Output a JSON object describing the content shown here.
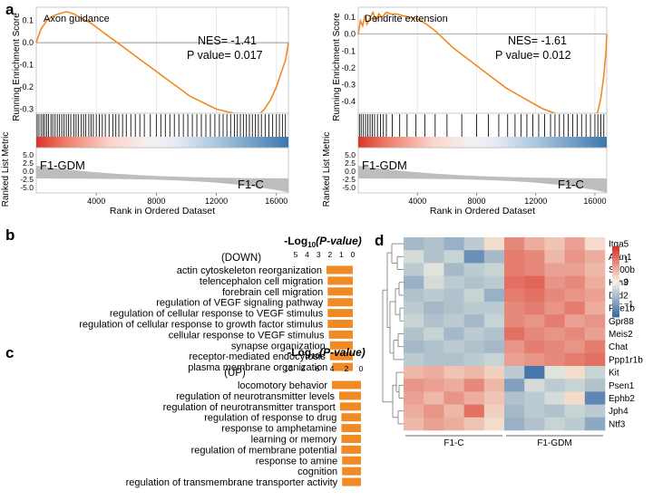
{
  "panel_letters": {
    "a": "a",
    "b": "b",
    "c": "c",
    "d": "d"
  },
  "colors": {
    "gsea_line": "#f08a24",
    "bar": "#f08a24",
    "heat_low": "#3b6ea8",
    "heat_mid": "#f7f4e3",
    "heat_high": "#d9352a"
  },
  "chart_data": [
    {
      "id": "gsea_axon",
      "type": "line",
      "title": "Axon guidance",
      "nes_label": "NES= -1.41",
      "pvalue_label": "P value= 0.017",
      "ylabel": "Running Enrichment Score",
      "ylabel2": "Ranked List Metric",
      "xlabel": "Rank in Ordered Dataset",
      "ylim": [
        -0.38,
        0.16
      ],
      "yticks": [
        0.1,
        0.0,
        -0.1,
        -0.2,
        -0.3
      ],
      "ytick_labels": [
        "0.1",
        "0.0",
        "-0.1",
        "-0.2",
        "-0.3"
      ],
      "xlim": [
        0,
        16800
      ],
      "xticks": [
        4000,
        8000,
        12000,
        16000
      ],
      "xtick_labels": [
        "4000",
        "8000",
        "12000",
        "16000"
      ],
      "metric_ticks": [
        "5.0",
        "2.5",
        "0.0",
        "-2.5",
        "-5.0"
      ],
      "left_group": "F1-GDM",
      "right_group": "F1-C",
      "curve": {
        "x": [
          0,
          300,
          700,
          1100,
          1500,
          2000,
          2500,
          3000,
          3600,
          4200,
          4800,
          5400,
          6000,
          6600,
          7200,
          7800,
          8400,
          9000,
          9600,
          10200,
          10800,
          11400,
          12000,
          12600,
          13200,
          13800,
          14400,
          14800,
          15200,
          15600,
          16000,
          16300,
          16600,
          16800
        ],
        "y": [
          0.0,
          0.06,
          0.1,
          0.12,
          0.13,
          0.14,
          0.13,
          0.11,
          0.09,
          0.06,
          0.03,
          0.0,
          -0.03,
          -0.06,
          -0.09,
          -0.12,
          -0.15,
          -0.18,
          -0.21,
          -0.24,
          -0.26,
          -0.28,
          -0.3,
          -0.31,
          -0.32,
          -0.32,
          -0.33,
          -0.33,
          -0.3,
          -0.26,
          -0.2,
          -0.14,
          -0.08,
          0.0
        ]
      },
      "hits": [
        60,
        180,
        320,
        450,
        560,
        700,
        820,
        980,
        1100,
        1250,
        1400,
        1550,
        1700,
        1850,
        2000,
        2150,
        2300,
        2500,
        2650,
        2800,
        3000,
        3150,
        3300,
        3500,
        3650,
        3800,
        4000,
        4200,
        4400,
        4600,
        4850,
        5100,
        5300,
        5500,
        5750,
        6000,
        6300,
        6600,
        6900,
        7200,
        7600,
        8000,
        8300,
        8600,
        8900,
        9200,
        9500,
        9800,
        10100,
        10400,
        10700,
        11000,
        11300,
        11600,
        11900,
        12200,
        12450,
        12700,
        12950,
        13200,
        13400,
        13600,
        13800,
        14000,
        14200,
        14400,
        14600,
        14800,
        15000,
        15250,
        15500,
        15750,
        16000,
        16200,
        16400,
        16600
      ]
    },
    {
      "id": "gsea_dendrite",
      "type": "line",
      "title": "Dendrite extension",
      "nes_label": "NES= -1.61",
      "pvalue_label": "P value= 0.012",
      "ylabel": "Running Enrichment Score",
      "ylabel2": "Ranked List Metric",
      "xlabel": "Rank in Ordered Dataset",
      "ylim": [
        -0.55,
        0.16
      ],
      "yticks": [
        0.1,
        0.0,
        -0.1,
        -0.2,
        -0.3,
        -0.4,
        -0.5
      ],
      "ytick_labels": [
        "0.1",
        "0.0",
        "-0.1",
        "-0.2",
        "-0.3",
        "-0.4",
        "-0.5"
      ],
      "xlim": [
        0,
        16800
      ],
      "xticks": [
        4000,
        8000,
        12000,
        16000
      ],
      "xtick_labels": [
        "4000",
        "8000",
        "12000",
        "16000"
      ],
      "metric_ticks": [
        "5.0",
        "2.5",
        "0.0",
        "-2.5",
        "-5.0"
      ],
      "left_group": "F1-GDM",
      "right_group": "F1-C",
      "curve": {
        "x": [
          0,
          150,
          300,
          450,
          600,
          800,
          1000,
          1200,
          1400,
          1600,
          1900,
          2200,
          2600,
          3000,
          3500,
          4000,
          4600,
          5200,
          5800,
          6400,
          7000,
          7600,
          8200,
          8800,
          9400,
          10000,
          10600,
          11200,
          11800,
          12400,
          13000,
          13600,
          14200,
          14800,
          15400,
          15900,
          16200,
          16400,
          16600,
          16750,
          16800
        ],
        "y": [
          0.0,
          0.08,
          0.05,
          0.11,
          0.06,
          0.1,
          0.13,
          0.08,
          0.12,
          0.1,
          0.13,
          0.12,
          0.12,
          0.11,
          0.1,
          0.09,
          0.06,
          0.02,
          -0.03,
          -0.08,
          -0.12,
          -0.16,
          -0.2,
          -0.24,
          -0.28,
          -0.32,
          -0.35,
          -0.38,
          -0.41,
          -0.44,
          -0.46,
          -0.48,
          -0.49,
          -0.5,
          -0.51,
          -0.5,
          -0.46,
          -0.38,
          -0.25,
          -0.1,
          0.0
        ]
      },
      "hits": [
        80,
        200,
        350,
        500,
        650,
        800,
        950,
        1100,
        1300,
        1500,
        1700,
        1900,
        2300,
        2800,
        3300,
        3900,
        4500,
        5200,
        6000,
        7000,
        8000,
        8800,
        9500,
        10100,
        10600,
        11000,
        11400,
        11800,
        12200,
        12600,
        13000,
        13300,
        13600,
        13900,
        14200,
        14500,
        14800,
        15100,
        15400,
        15700,
        16000,
        16200,
        16400,
        16600
      ]
    },
    {
      "id": "go_down",
      "type": "bar",
      "orientation": "horizontal",
      "group_label": "(DOWN)",
      "title_prefix": "-Log",
      "title_sub": "10",
      "title_suffix": "(P-value)",
      "xlim": [
        0,
        5
      ],
      "xticks": [
        5,
        4,
        3,
        2,
        1,
        0
      ],
      "xtick_labels": [
        "5",
        "4",
        "3",
        "2",
        "1",
        "0"
      ],
      "categories": [
        "actin cytoskeleton reorganization",
        "telencephalon cell migration",
        "forebrain cell migration",
        "regulation of VEGF signaling pathway",
        "regulation of cellular response to VEGF stimulus",
        "regulation of cellular response to growth factor stimulus",
        "cellular response to VEGF stimulus",
        "synapse organization",
        "receptor-mediated endocytosis",
        "plasma membrane organization"
      ],
      "values": [
        2.3,
        2.2,
        2.2,
        2.2,
        2.2,
        2.2,
        2.1,
        2.0,
        2.0,
        1.8
      ]
    },
    {
      "id": "go_up",
      "type": "bar",
      "orientation": "horizontal",
      "group_label": "(UP)",
      "title_prefix": "-Log",
      "title_sub": "10",
      "title_suffix": "(P-value)",
      "xlim": [
        0,
        10
      ],
      "xticks": [
        10,
        8,
        6,
        4,
        2,
        0
      ],
      "xtick_labels": [
        "10",
        "8",
        "6",
        "4",
        "2",
        "0"
      ],
      "categories": [
        "locomotory behavior",
        "regulation of neurotransmitter levels",
        "regulation of neurotransmitter transport",
        "regulation of response to drug",
        "response to amphetamine",
        "learning or memory",
        "regulation of membrane potential",
        "response to amine",
        "cognition",
        "regulation of transmembrane transporter activity"
      ],
      "values": [
        4.0,
        3.0,
        2.9,
        2.7,
        2.7,
        2.7,
        2.7,
        2.6,
        2.6,
        2.6
      ]
    },
    {
      "id": "heatmap",
      "type": "heatmap",
      "rows": [
        "Itga5",
        "Atxn1",
        "S100b",
        "Hrh3",
        "Drd2",
        "Pde1b",
        "Gpr88",
        "Meis2",
        "Chat",
        "Ppp1r1b",
        "Kit",
        "Psen1",
        "Ephb2",
        "Jph4",
        "Ntf3"
      ],
      "groups": [
        "F1-C",
        "F1-GDM"
      ],
      "columns_per_group": 5,
      "legend_ticks": [
        1,
        0,
        -1
      ],
      "legend_tick_labels": [
        "1",
        "0",
        "−1"
      ],
      "value_range": [
        -1.6,
        1.6
      ],
      "values": [
        [
          -0.7,
          -0.6,
          -0.8,
          -0.5,
          0.2,
          0.9,
          0.6,
          0.4,
          0.7,
          0.2
        ],
        [
          -0.3,
          -0.6,
          -0.4,
          -1.2,
          -0.7,
          1.0,
          0.9,
          0.5,
          0.8,
          0.6
        ],
        [
          -0.5,
          -0.2,
          -0.7,
          -0.5,
          -0.4,
          1.0,
          0.9,
          0.7,
          0.7,
          0.5
        ],
        [
          -0.8,
          -0.3,
          -0.5,
          -0.6,
          -0.5,
          1.1,
          1.2,
          0.8,
          0.9,
          0.6
        ],
        [
          -0.6,
          -0.5,
          -0.6,
          -0.4,
          -0.8,
          1.0,
          1.1,
          0.9,
          0.8,
          0.7
        ],
        [
          -0.5,
          -0.7,
          -0.6,
          -0.5,
          -0.5,
          0.9,
          1.0,
          0.8,
          1.0,
          0.6
        ],
        [
          -0.4,
          -0.6,
          -0.5,
          -0.7,
          -0.4,
          0.9,
          0.8,
          1.0,
          0.7,
          0.8
        ],
        [
          -0.6,
          -0.4,
          -0.7,
          -0.5,
          -0.6,
          1.1,
          0.9,
          0.8,
          0.9,
          0.7
        ],
        [
          -0.7,
          -0.6,
          -0.5,
          -0.6,
          -0.7,
          0.8,
          1.0,
          0.9,
          0.8,
          1.0
        ],
        [
          -0.5,
          -0.6,
          -0.6,
          -0.5,
          -0.4,
          0.7,
          0.8,
          0.9,
          1.0,
          1.1
        ],
        [
          0.5,
          0.6,
          0.4,
          0.5,
          0.3,
          -0.5,
          -1.5,
          -0.2,
          0.2,
          -0.4
        ],
        [
          0.8,
          0.7,
          0.6,
          0.9,
          0.5,
          -1.0,
          -0.3,
          -0.5,
          -0.4,
          -0.6
        ],
        [
          0.7,
          0.5,
          0.8,
          0.6,
          0.4,
          -0.6,
          -0.5,
          -0.3,
          0.2,
          -1.3
        ],
        [
          0.6,
          0.8,
          0.5,
          1.1,
          0.3,
          -0.7,
          -0.5,
          -0.6,
          -0.4,
          -0.5
        ],
        [
          0.5,
          0.7,
          0.6,
          0.4,
          0.2,
          -0.8,
          -0.6,
          -0.4,
          -0.5,
          -0.9
        ]
      ]
    }
  ]
}
